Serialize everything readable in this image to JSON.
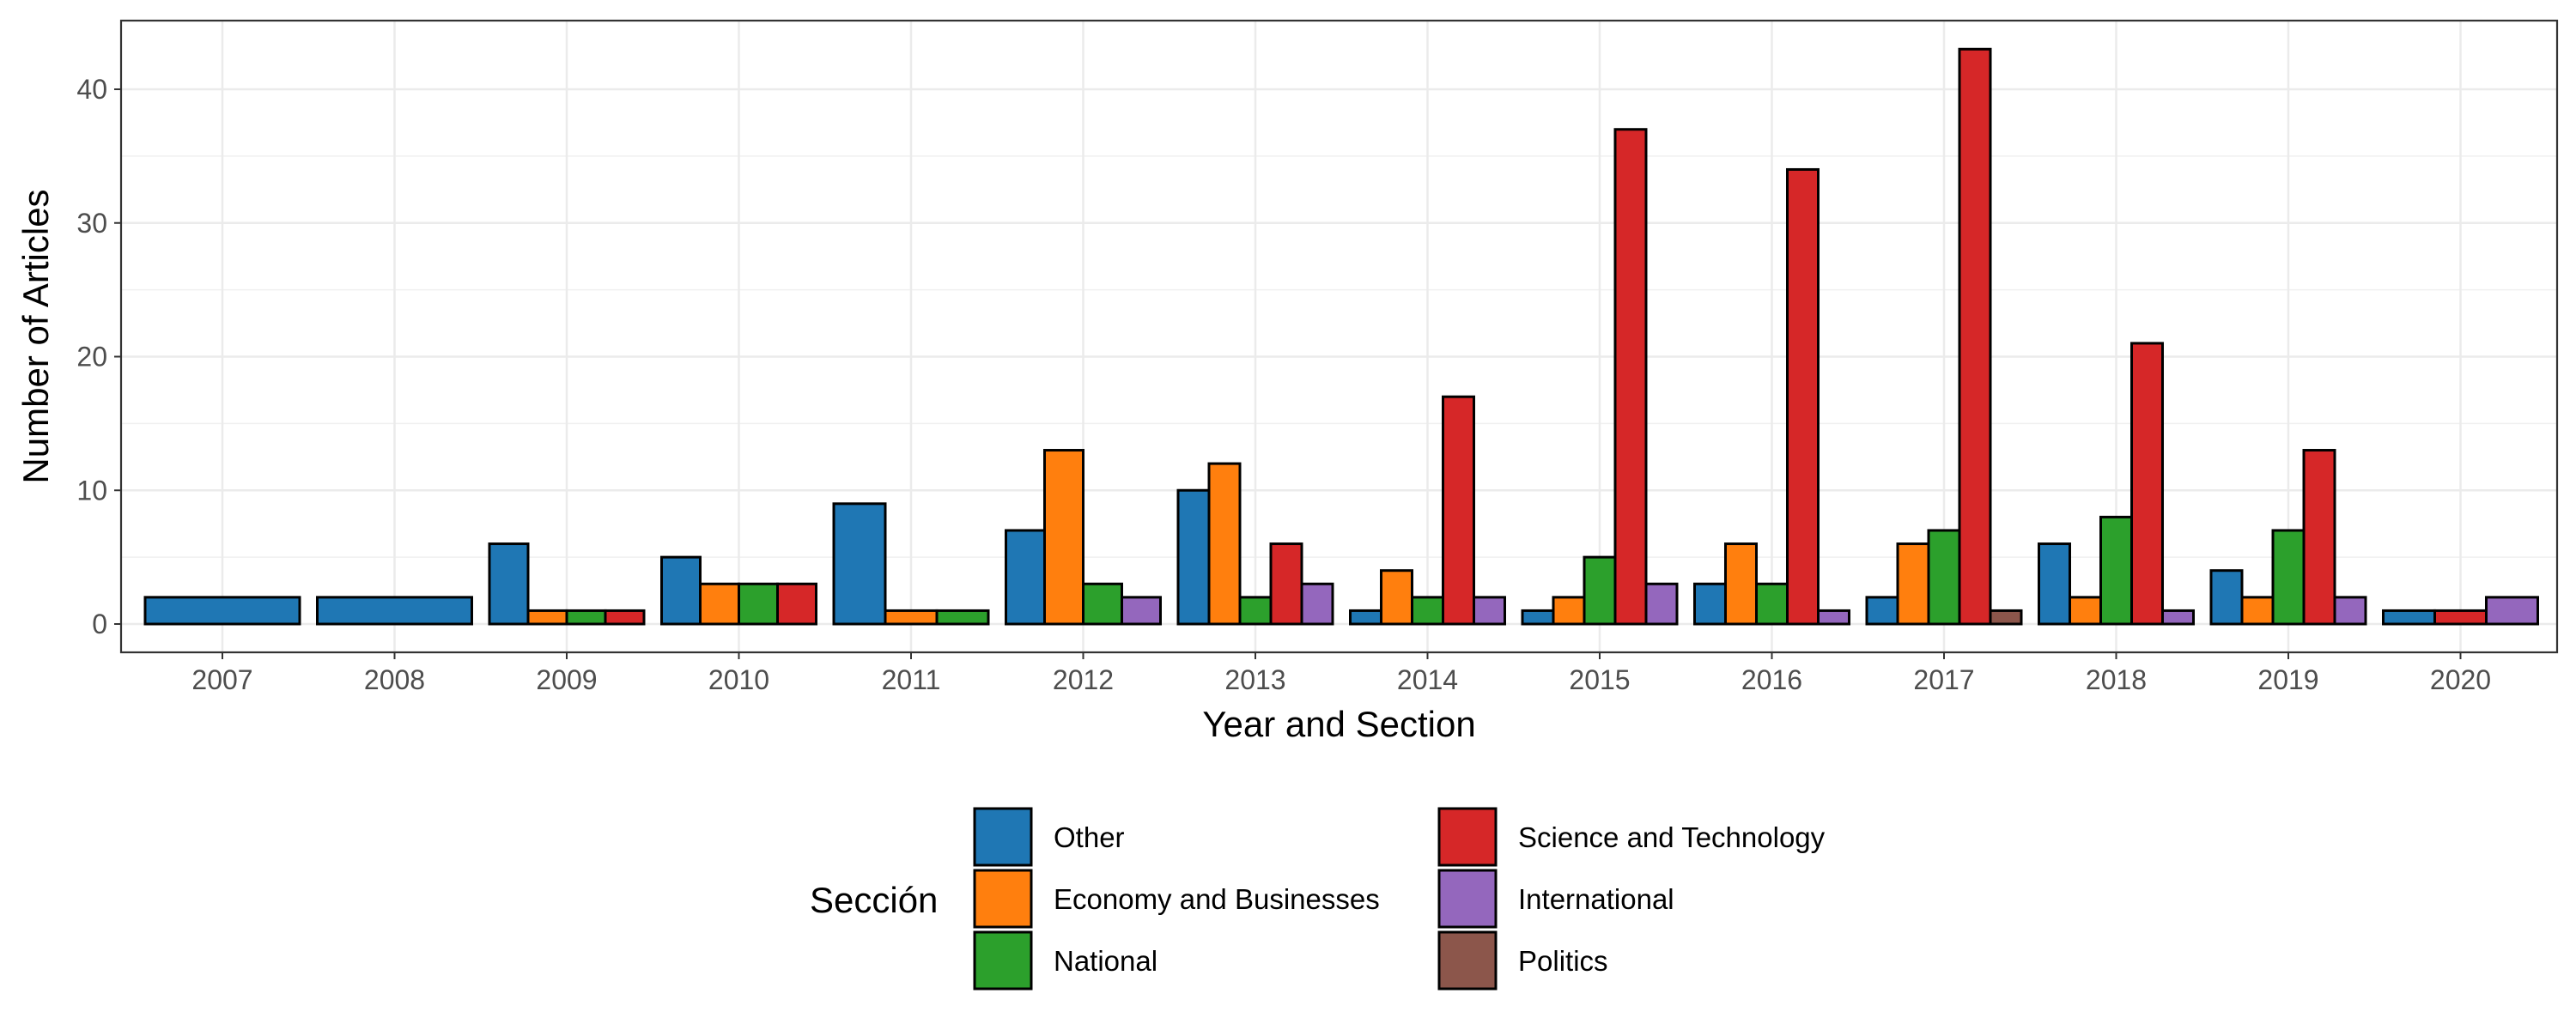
{
  "chart_data": {
    "type": "bar",
    "title": "",
    "xlabel": "Year and Section",
    "ylabel": "Number of Articles",
    "ylim": [
      0,
      45
    ],
    "yticks": [
      0,
      10,
      20,
      30,
      40
    ],
    "grid": true,
    "legend_position": "bottom",
    "legend_title": "Sección",
    "categories": [
      "2007",
      "2008",
      "2009",
      "2010",
      "2011",
      "2012",
      "2013",
      "2014",
      "2015",
      "2016",
      "2017",
      "2018",
      "2019",
      "2020"
    ],
    "series": [
      {
        "name": "Other",
        "color": "#1f77b4",
        "values": [
          2,
          2,
          6,
          5,
          9,
          7,
          10,
          1,
          1,
          3,
          2,
          6,
          4,
          1
        ]
      },
      {
        "name": "Economy and Businesses",
        "color": "#ff7f0e",
        "values": [
          null,
          null,
          1,
          3,
          1,
          13,
          12,
          4,
          2,
          6,
          6,
          2,
          2,
          null
        ]
      },
      {
        "name": "National",
        "color": "#2ca02c",
        "values": [
          null,
          null,
          1,
          3,
          1,
          3,
          2,
          2,
          5,
          3,
          7,
          8,
          7,
          null
        ]
      },
      {
        "name": "Science and Technology",
        "color": "#d62728",
        "values": [
          null,
          null,
          1,
          3,
          null,
          null,
          6,
          17,
          37,
          34,
          43,
          21,
          13,
          1
        ]
      },
      {
        "name": "International",
        "color": "#9467bd",
        "values": [
          null,
          null,
          null,
          null,
          null,
          2,
          3,
          2,
          3,
          1,
          null,
          1,
          2,
          2
        ]
      },
      {
        "name": "Politics",
        "color": "#8c564b",
        "values": [
          null,
          null,
          null,
          null,
          null,
          null,
          null,
          null,
          null,
          null,
          1,
          null,
          null,
          null
        ]
      }
    ]
  }
}
